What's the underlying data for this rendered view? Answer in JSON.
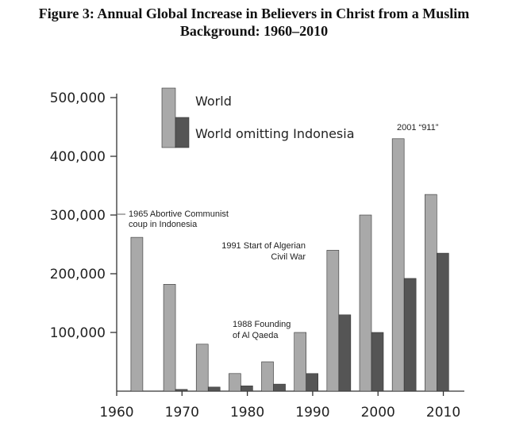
{
  "chart_data": {
    "type": "bar",
    "title_line1": "Figure 3: Annual Global Increase in Believers in Christ from a Muslim",
    "title_line2": "Background: 1960–2010",
    "xlabel": "",
    "ylabel": "",
    "ylim": [
      0,
      500000
    ],
    "y_ticks": [
      {
        "value": 100000,
        "label": "100,000"
      },
      {
        "value": 200000,
        "label": "200,000"
      },
      {
        "value": 300000,
        "label": "300,000"
      },
      {
        "value": 400000,
        "label": "400,000"
      },
      {
        "value": 500000,
        "label": "500,000"
      }
    ],
    "x_ticks": [
      {
        "value": 1960,
        "label": "1960"
      },
      {
        "value": 1970,
        "label": "1970"
      },
      {
        "value": 1980,
        "label": "1980"
      },
      {
        "value": 1990,
        "label": "1990"
      },
      {
        "value": 2000,
        "label": "2000"
      },
      {
        "value": 2010,
        "label": "2010"
      }
    ],
    "xlim": [
      1960,
      2012
    ],
    "categories": [
      1964,
      1969,
      1974,
      1979,
      1984,
      1989,
      1994,
      1999,
      2004,
      2009
    ],
    "series": [
      {
        "name": "World",
        "color": "#a9a9a9",
        "values": [
          262000,
          182000,
          80000,
          30000,
          50000,
          100000,
          240000,
          300000,
          430000,
          335000
        ]
      },
      {
        "name": "World omitting Indonesia",
        "color": "#555555",
        "values": [
          0,
          3000,
          7000,
          9000,
          12000,
          30000,
          130000,
          100000,
          192000,
          235000
        ]
      }
    ],
    "legend_position": "top-left",
    "annotations": [
      {
        "lines": [
          "1965 Abortive Communist",
          "coup in Indonesia"
        ]
      },
      {
        "lines": [
          "1991 Start of Algerian",
          "Civil War"
        ]
      },
      {
        "lines": [
          "1988 Founding",
          "of Al Qaeda"
        ]
      },
      {
        "lines": [
          "2001 “911”"
        ]
      }
    ]
  }
}
